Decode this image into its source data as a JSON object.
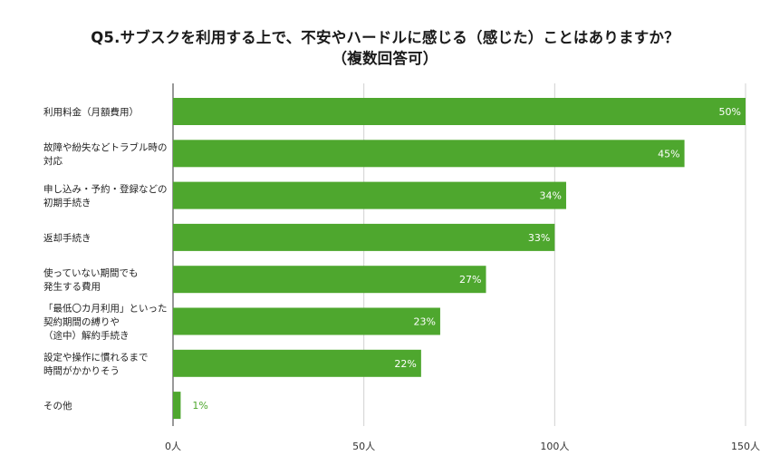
{
  "chart_data": {
    "type": "bar",
    "orientation": "horizontal",
    "title": "Q5.サブスクを利用する上で、不安やハードルに感じる（感じた）ことはありますか？",
    "subtitle": "（複数回答可）",
    "categories": [
      [
        "利用料金（月額費用）"
      ],
      [
        "故障や紛失などトラブル時の",
        "対応"
      ],
      [
        "申し込み・予約・登録などの",
        "初期手続き"
      ],
      [
        "返却手続き"
      ],
      [
        "使っていない期間でも",
        "発生する費用"
      ],
      [
        "「最低〇カ月利用」といった",
        "契約期間の縛りや",
        "（途中）解約手続き"
      ],
      [
        "設定や操作に慣れるまで",
        "時間がかかりそう"
      ],
      [
        "その他"
      ]
    ],
    "values": [
      150,
      134,
      103,
      100,
      82,
      70,
      65,
      2
    ],
    "data_labels": [
      "50%",
      "45%",
      "34%",
      "33%",
      "27%",
      "23%",
      "22%",
      "1%"
    ],
    "xlim": [
      0,
      150
    ],
    "x_ticks": [
      "0人",
      "50人",
      "100人",
      "150人"
    ],
    "x_tick_values": [
      0,
      50,
      100,
      150
    ],
    "grid": true,
    "colors": {
      "bar": "#4ea72e",
      "label_inside": "#ffffff",
      "label_outside": "#4ea72e",
      "grid": "#d0d0d0"
    }
  }
}
